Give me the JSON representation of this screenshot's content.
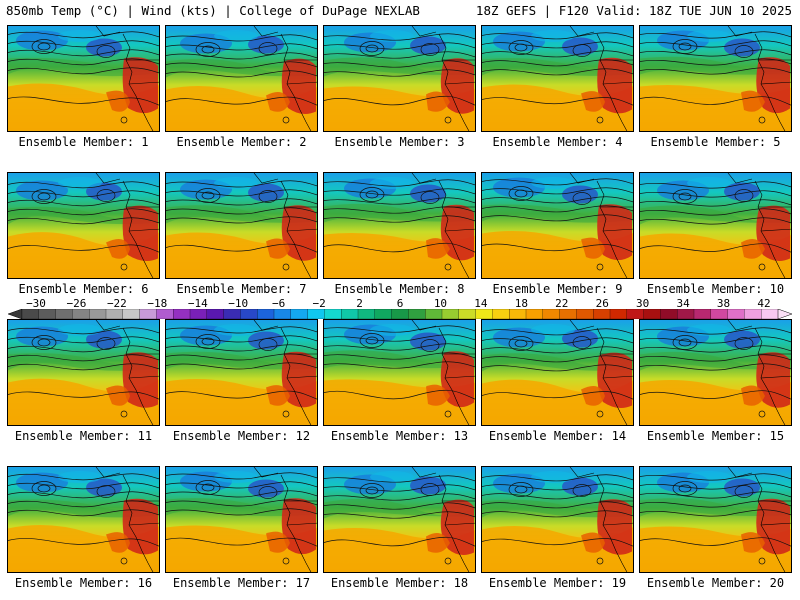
{
  "header": {
    "left_title": "850mb Temp (°C) | Wind (kts) | College of DuPage NEXLAB",
    "right_title": "18Z GEFS | F120 Valid: 18Z TUE JUN 10 2025"
  },
  "colorbar": {
    "tick_labels": [
      "−30",
      "−26",
      "−22",
      "−18",
      "−14",
      "−10",
      "−6",
      "−2",
      "2",
      "6",
      "10",
      "14",
      "18",
      "22",
      "26",
      "30",
      "34",
      "38",
      "42"
    ],
    "colors": [
      "#4a4a4a",
      "#5c5c5c",
      "#6f6f6f",
      "#848484",
      "#999999",
      "#b0b0b0",
      "#c8c8c8",
      "#c89ad8",
      "#b05cd0",
      "#9430c0",
      "#7a20b8",
      "#5a18b0",
      "#3a2cb4",
      "#2848c8",
      "#1c64dc",
      "#1888e8",
      "#14a8f0",
      "#10c8f0",
      "#14d8d0",
      "#10c8a8",
      "#10b880",
      "#10a860",
      "#189848",
      "#30a040",
      "#60b838",
      "#98cc30",
      "#ccdc28",
      "#f0e818",
      "#f8d010",
      "#f8b808",
      "#f8a000",
      "#f08800",
      "#e87000",
      "#e05800",
      "#d84000",
      "#d02800",
      "#c01818",
      "#a81010",
      "#900c28",
      "#a01848",
      "#b82870",
      "#d048a0",
      "#e070c8",
      "#f0a0e0",
      "#f8c8f0"
    ]
  },
  "members": [
    {
      "label": "Ensemble Member: 1"
    },
    {
      "label": "Ensemble Member: 2"
    },
    {
      "label": "Ensemble Member: 3"
    },
    {
      "label": "Ensemble Member: 4"
    },
    {
      "label": "Ensemble Member: 5"
    },
    {
      "label": "Ensemble Member: 6"
    },
    {
      "label": "Ensemble Member: 7"
    },
    {
      "label": "Ensemble Member: 8"
    },
    {
      "label": "Ensemble Member: 9"
    },
    {
      "label": "Ensemble Member: 10"
    },
    {
      "label": "Ensemble Member: 11"
    },
    {
      "label": "Ensemble Member: 12"
    },
    {
      "label": "Ensemble Member: 13"
    },
    {
      "label": "Ensemble Member: 14"
    },
    {
      "label": "Ensemble Member: 15"
    },
    {
      "label": "Ensemble Member: 16"
    },
    {
      "label": "Ensemble Member: 17"
    },
    {
      "label": "Ensemble Member: 18"
    },
    {
      "label": "Ensemble Member: 19"
    },
    {
      "label": "Ensemble Member: 20"
    }
  ]
}
